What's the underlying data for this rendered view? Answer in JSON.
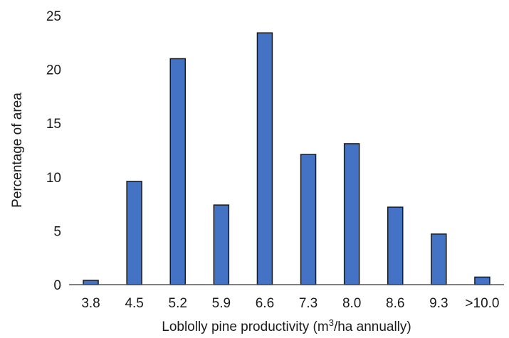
{
  "chart_data": {
    "type": "bar",
    "title": "",
    "xlabel": {
      "before": "Loblolly pine productivity (m",
      "superscript": "3",
      "after": "/ha annually)"
    },
    "ylabel": "Percentage of area",
    "categories": [
      "3.8",
      "4.5",
      "5.2",
      "5.9",
      "6.6",
      "7.3",
      "8.0",
      "8.6",
      "9.3",
      ">10.0"
    ],
    "values": [
      0.4,
      9.6,
      21.0,
      7.4,
      23.4,
      12.1,
      13.1,
      7.2,
      4.7,
      0.7
    ],
    "ylim": [
      0,
      25
    ],
    "yticks": [
      "0",
      "5",
      "10",
      "15",
      "20",
      "25"
    ],
    "grid": false,
    "legend": "none",
    "bar_color": "#4472c4",
    "bar_edge_color": "#1a1a1a"
  }
}
